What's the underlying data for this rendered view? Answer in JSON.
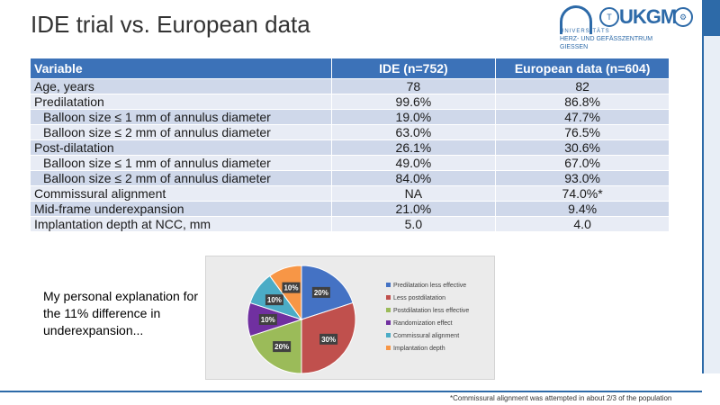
{
  "slide": {
    "title": "IDE trial vs. European data",
    "note": "My personal explanation for the 11% difference in underexpansion...",
    "footnote": "*Commissural alignment was attempted in about 2/3 of the population"
  },
  "logo": {
    "name": "UKGM",
    "line1": "UNIVERSITÄTS",
    "line2": "HERZ- UND GEFÄSSZENTRUM",
    "line3": "GIESSEN"
  },
  "table": {
    "headers": [
      "Variable",
      "IDE (n=752)",
      "European data (n=604)"
    ],
    "rows": [
      {
        "label": "Age, years",
        "ide": "78",
        "eu": "82",
        "sub": false
      },
      {
        "label": "Predilatation",
        "ide": "99.6%",
        "eu": "86.8%",
        "sub": false
      },
      {
        "label": "Balloon size ≤ 1 mm of annulus diameter",
        "ide": "19.0%",
        "eu": "47.7%",
        "sub": true
      },
      {
        "label": "Balloon size ≤ 2 mm of annulus diameter",
        "ide": "63.0%",
        "eu": "76.5%",
        "sub": true
      },
      {
        "label": "Post-dilatation",
        "ide": "26.1%",
        "eu": "30.6%",
        "sub": false
      },
      {
        "label": "Balloon size ≤ 1 mm of annulus diameter",
        "ide": "49.0%",
        "eu": "67.0%",
        "sub": true
      },
      {
        "label": "Balloon size ≤ 2 mm of annulus diameter",
        "ide": "84.0%",
        "eu": "93.0%",
        "sub": true
      },
      {
        "label": "Commissural alignment",
        "ide": "NA",
        "eu": "74.0%*",
        "sub": false
      },
      {
        "label": "Mid-frame underexpansion",
        "ide": "21.0%",
        "eu": "9.4%",
        "sub": false
      },
      {
        "label": "Implantation depth at NCC, mm",
        "ide": "5.0",
        "eu": "4.0",
        "sub": false
      }
    ]
  },
  "chart_data": {
    "type": "pie",
    "categories": [
      "Predilatation less effective",
      "Less postdilatation",
      "Postdilatation less effective",
      "Randomization effect",
      "Commissural alignment",
      "Implantation depth"
    ],
    "values": [
      20,
      30,
      20,
      10,
      10,
      10
    ],
    "labels": [
      "20%",
      "30%",
      "20%",
      "10%",
      "10%",
      "10%"
    ],
    "colors": [
      "#4472c4",
      "#c0504d",
      "#9bbb59",
      "#7030a0",
      "#4bacc6",
      "#f79646"
    ],
    "legend": "right"
  }
}
